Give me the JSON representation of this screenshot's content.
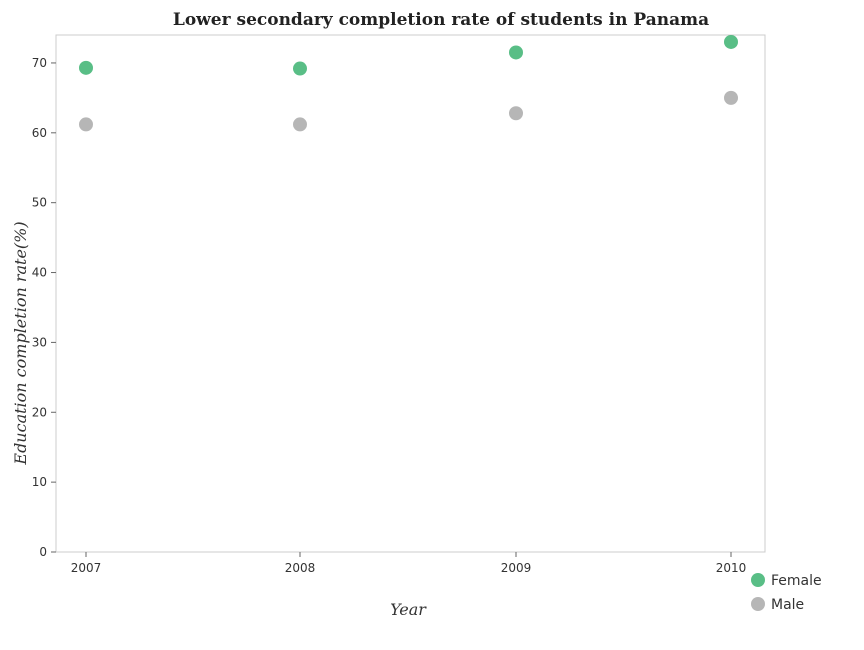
{
  "chart_data": {
    "type": "scatter",
    "title": "Lower secondary completion rate of students in Panama",
    "xlabel": "Year",
    "ylabel": "Education completion rate(%)",
    "categories": [
      "2007",
      "2008",
      "2009",
      "2010"
    ],
    "ylim": [
      0,
      74
    ],
    "yticks": [
      0,
      10,
      20,
      30,
      40,
      50,
      60,
      70
    ],
    "grid": false,
    "legend_position": "bottom-right",
    "series": [
      {
        "name": "Female",
        "color": "#3cb371",
        "values": [
          69.3,
          69.2,
          71.5,
          73.0
        ]
      },
      {
        "name": "Male",
        "color": "#a9a9a9",
        "values": [
          61.2,
          61.2,
          62.8,
          65.0
        ]
      }
    ]
  }
}
